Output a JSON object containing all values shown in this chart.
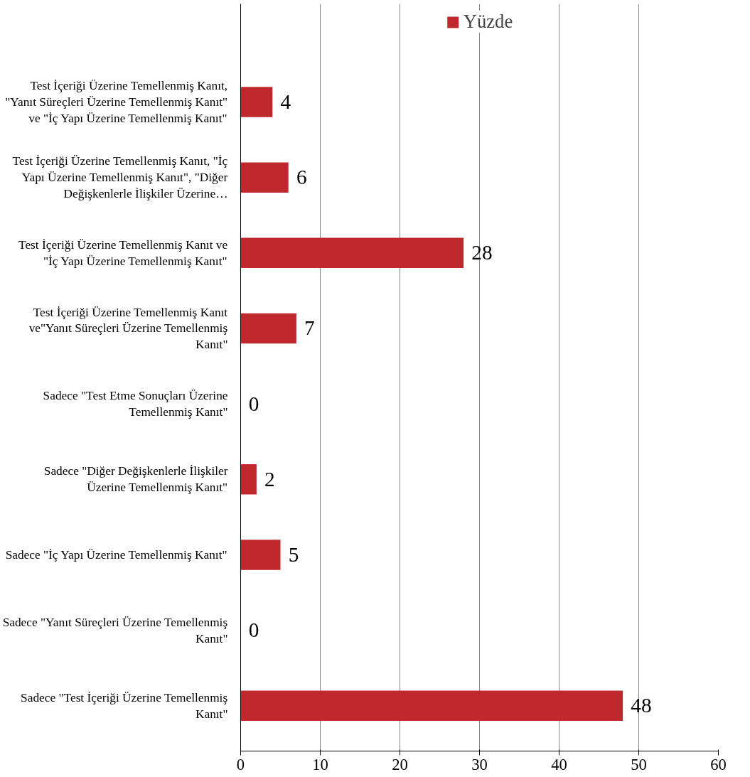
{
  "chart_data": {
    "type": "bar",
    "orientation": "horizontal",
    "categories": [
      "Test İçeriği Üzerine Temellenmiş Kanıt, \"Yanıt Süreçleri Üzerine Temellenmiş Kanıt\" ve \"İç Yapı Üzerine Temellenmiş Kanıt\"",
      "Test İçeriği Üzerine Temellenmiş Kanıt, \"İç Yapı Üzerine Temellenmiş Kanıt\", \"Diğer Değişkenlerle İlişkiler Üzerine…",
      "Test İçeriği Üzerine Temellenmiş Kanıt ve \"İç Yapı Üzerine Temellenmiş Kanıt\"",
      "Test İçeriği Üzerine Temellenmiş Kanıt ve\"Yanıt Süreçleri Üzerine Temellenmiş Kanıt\"",
      "Sadece \"Test Etme Sonuçları Üzerine Temellenmiş Kanıt\"",
      "Sadece \"Diğer Değişkenlerle İlişkiler Üzerine Temellenmiş Kanıt\"",
      "Sadece \"İç Yapı Üzerine Temellenmiş Kanıt\"",
      "Sadece \"Yanıt Süreçleri Üzerine Temellenmiş Kanıt\"",
      "Sadece \"Test İçeriği Üzerine Temellenmiş Kanıt\""
    ],
    "series": [
      {
        "name": "Yüzde",
        "color": "#c0282d",
        "values": [
          4,
          6,
          28,
          7,
          0,
          2,
          5,
          0,
          48
        ]
      }
    ],
    "xlim": [
      0,
      60
    ],
    "xticks": [
      0,
      10,
      20,
      30,
      40,
      50,
      60
    ],
    "grid": "x",
    "legend": "top",
    "data_labels": true
  }
}
